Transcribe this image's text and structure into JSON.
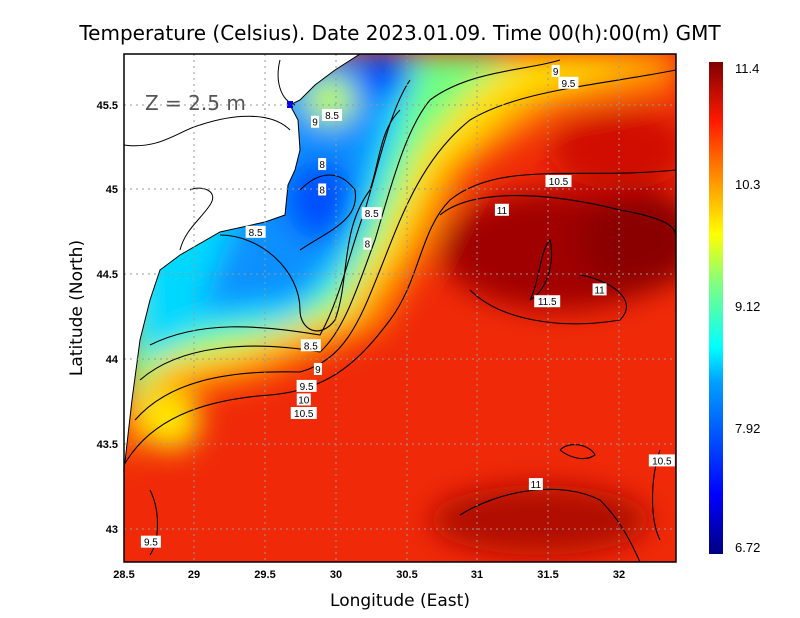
{
  "title": "Temperature (Celsius). Date 2023.01.09. Time 00(h):00(m) GMT",
  "depth_label": "Z = 2.5 m",
  "chart_data": {
    "type": "heatmap",
    "title": "Temperature (Celsius). Date 2023.01.09. Time 00(h):00(m) GMT",
    "xlabel": "Longitude (East)",
    "ylabel": "Latitude (North)",
    "xlim": [
      28.5,
      32.4
    ],
    "ylim": [
      42.8,
      45.8
    ],
    "xticks": [
      "28.5",
      "29",
      "29.5",
      "30",
      "30.5",
      "31",
      "31.5",
      "32"
    ],
    "yticks": [
      "45.5",
      "45",
      "44.5",
      "44",
      "43.5",
      "43"
    ],
    "grid": true,
    "colorbar": {
      "min": 6.72,
      "max": 11.4,
      "ticks": [
        "11.4",
        "10.3",
        "9.12",
        "7.92",
        "6.72"
      ],
      "placement": "right"
    },
    "contour_labels": [
      {
        "v": "9",
        "lon": 31.55,
        "lat": 45.7
      },
      {
        "v": "9.5",
        "lon": 31.64,
        "lat": 45.63
      },
      {
        "v": "10.5",
        "lon": 31.57,
        "lat": 45.05
      },
      {
        "v": "11",
        "lon": 31.17,
        "lat": 44.88
      },
      {
        "v": "11",
        "lon": 31.86,
        "lat": 44.41
      },
      {
        "v": "11.5",
        "lon": 31.49,
        "lat": 44.34
      },
      {
        "v": "8.5",
        "lon": 29.97,
        "lat": 45.44
      },
      {
        "v": "9",
        "lon": 29.85,
        "lat": 45.4
      },
      {
        "v": "8",
        "lon": 29.9,
        "lat": 45.15
      },
      {
        "v": "8",
        "lon": 29.9,
        "lat": 45.0
      },
      {
        "v": "8.5",
        "lon": 30.25,
        "lat": 44.86
      },
      {
        "v": "8",
        "lon": 30.22,
        "lat": 44.68
      },
      {
        "v": "8.5",
        "lon": 29.43,
        "lat": 44.75
      },
      {
        "v": "8.5",
        "lon": 29.82,
        "lat": 44.08
      },
      {
        "v": "9",
        "lon": 29.87,
        "lat": 43.94
      },
      {
        "v": "9.5",
        "lon": 29.79,
        "lat": 43.84
      },
      {
        "v": "10",
        "lon": 29.77,
        "lat": 43.76
      },
      {
        "v": "10.5",
        "lon": 29.77,
        "lat": 43.68
      },
      {
        "v": "11",
        "lon": 31.41,
        "lat": 43.26
      },
      {
        "v": "10.5",
        "lon": 32.3,
        "lat": 43.4
      },
      {
        "v": "9.5",
        "lon": 28.69,
        "lat": 42.92
      }
    ]
  },
  "colors": {
    "dark_red": "#800000",
    "red": "#ff1a00",
    "orange": "#ff8c00",
    "yellow": "#ffff00",
    "green": "#80ff80",
    "cyan": "#00e6ff",
    "blue": "#0040ff",
    "navy": "#000080"
  }
}
